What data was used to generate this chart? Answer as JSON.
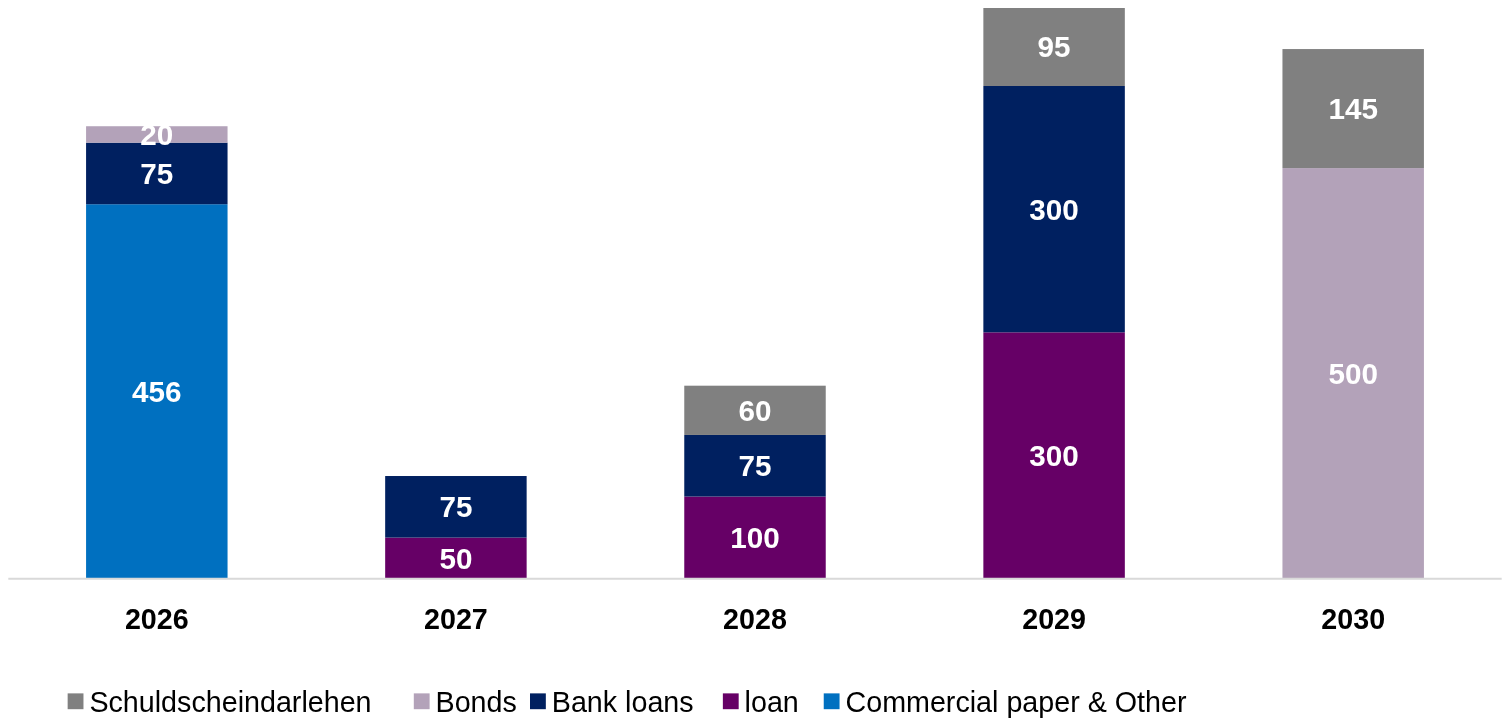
{
  "chart_data": {
    "type": "bar",
    "stacked": true,
    "data_labels": true,
    "legend": "bottom",
    "categories": [
      "2026",
      "2027",
      "2028",
      "2029",
      "2030"
    ],
    "series": [
      {
        "name": "Commercial paper & Other",
        "color": "#0070c0",
        "values": [
          456,
          null,
          null,
          null,
          null
        ]
      },
      {
        "name": "loan",
        "color": "#660066",
        "values": [
          null,
          50,
          100,
          300,
          null
        ]
      },
      {
        "name": "Bank loans",
        "color": "#002060",
        "values": [
          75,
          75,
          75,
          300,
          null
        ]
      },
      {
        "name": "Bonds",
        "color": "#b3a2b9",
        "values": [
          20,
          null,
          null,
          null,
          500
        ]
      },
      {
        "name": "Schuldscheindarlehen",
        "color": "#808080",
        "values": [
          null,
          null,
          60,
          95,
          145
        ]
      }
    ]
  }
}
